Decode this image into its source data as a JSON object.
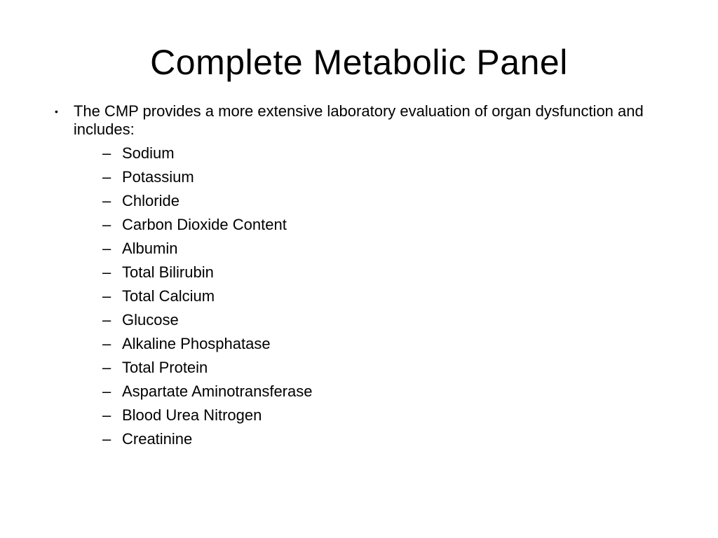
{
  "title": "Complete Metabolic Panel",
  "intro": "The CMP provides a more extensive laboratory evaluation of organ dysfunction and includes:",
  "items": [
    "Sodium",
    "Potassium",
    "Chloride",
    "Carbon Dioxide Content",
    "Albumin",
    "Total Bilirubin",
    "Total Calcium",
    "Glucose",
    "Alkaline Phosphatase",
    "Total Protein",
    "Aspartate Aminotransferase",
    "Blood Urea Nitrogen",
    "Creatinine"
  ],
  "colors": {
    "background": "#ffffff",
    "text": "#000000"
  },
  "typography": {
    "title_fontsize": 50,
    "body_fontsize": 22,
    "font_family": "Arial"
  }
}
